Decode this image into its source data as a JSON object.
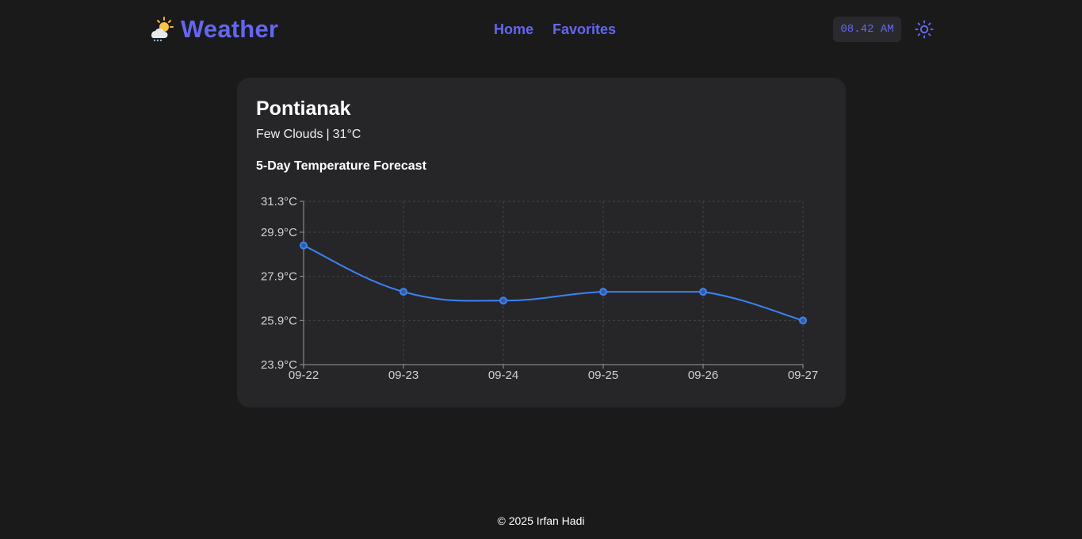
{
  "header": {
    "brand_icon": "sun-behind-rain-cloud-icon",
    "title": "Weather",
    "nav": [
      {
        "label": "Home"
      },
      {
        "label": "Favorites"
      }
    ],
    "clock": "08.42 AM",
    "theme_toggle_icon": "sun-icon"
  },
  "weather": {
    "city": "Pontianak",
    "description": "Few Clouds",
    "separator": "|",
    "temperature": "31°C",
    "forecast_title": "5-Day Temperature Forecast"
  },
  "chart_data": {
    "type": "line",
    "categories": [
      "09-22",
      "09-23",
      "09-24",
      "09-25",
      "09-26",
      "09-27"
    ],
    "values": [
      29.3,
      27.2,
      26.8,
      27.2,
      27.2,
      25.9
    ],
    "y_ticks": [
      "31.3°C",
      "29.9°C",
      "27.9°C",
      "25.9°C",
      "23.9°C"
    ],
    "y_tick_values": [
      31.3,
      29.9,
      27.9,
      25.9,
      23.9
    ],
    "ylim": [
      23.9,
      31.3
    ],
    "grid": true,
    "line_color": "#3b82f6"
  },
  "colors": {
    "accent": "#6366f1",
    "background": "#1a1a1a",
    "card": "#262628"
  },
  "footer": {
    "text": "© 2025 Irfan Hadi"
  }
}
